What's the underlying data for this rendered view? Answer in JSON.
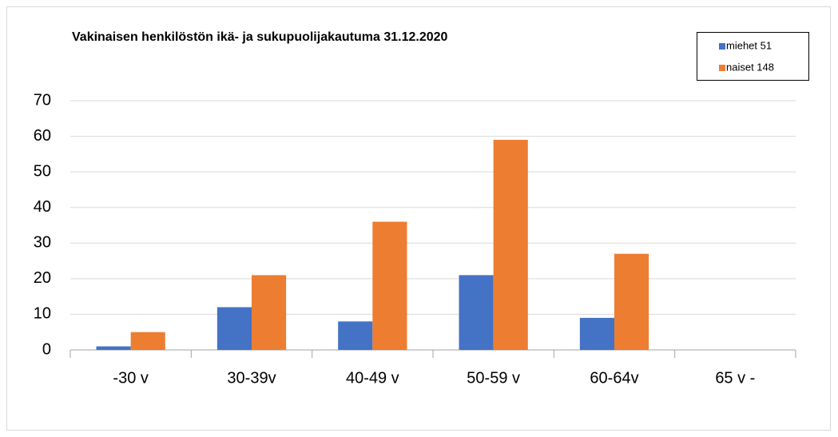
{
  "chart_data": {
    "type": "bar",
    "title": "Vakinaisen henkilöstön ikä- ja sukupuolijakautuma 31.12.2020",
    "categories": [
      "-30 v",
      "30-39v",
      "40-49 v",
      "50-59 v",
      "60-64v",
      "65 v -"
    ],
    "series": [
      {
        "name": "miehet 51",
        "color": "#4472c4",
        "values": [
          1,
          12,
          8,
          21,
          9,
          0
        ]
      },
      {
        "name": "naiset 148",
        "color": "#ed7d31",
        "values": [
          5,
          21,
          36,
          59,
          27,
          0
        ]
      }
    ],
    "ylim": [
      0,
      70
    ],
    "yticks": [
      0,
      10,
      20,
      30,
      40,
      50,
      60,
      70
    ],
    "grid": true,
    "legend": "top-right"
  }
}
